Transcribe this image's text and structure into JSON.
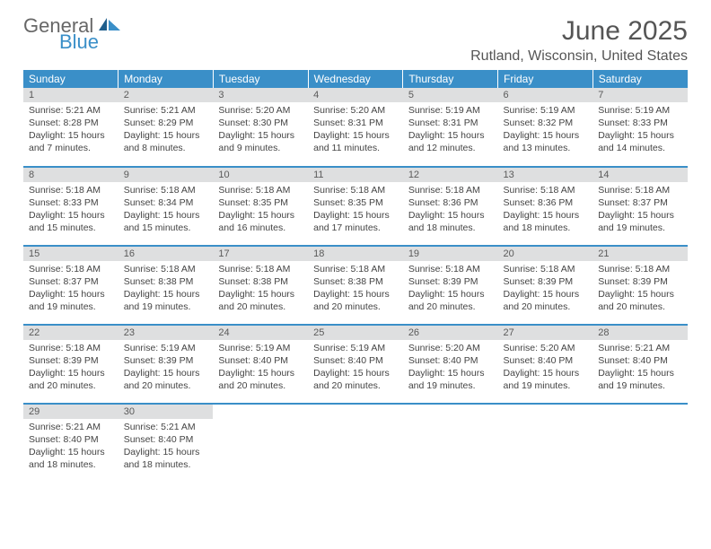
{
  "logo": {
    "word1": "General",
    "word2": "Blue"
  },
  "header": {
    "title": "June 2025",
    "location": "Rutland, Wisconsin, United States"
  },
  "colors": {
    "accent": "#3a8fc8",
    "day_header_bg": "#dedfe0",
    "text": "#444444",
    "title": "#555555"
  },
  "calendar": {
    "day_names": [
      "Sunday",
      "Monday",
      "Tuesday",
      "Wednesday",
      "Thursday",
      "Friday",
      "Saturday"
    ],
    "weeks": [
      [
        {
          "n": "1",
          "sunrise": "5:21 AM",
          "sunset": "8:28 PM",
          "day_h": "15",
          "day_m": "7"
        },
        {
          "n": "2",
          "sunrise": "5:21 AM",
          "sunset": "8:29 PM",
          "day_h": "15",
          "day_m": "8"
        },
        {
          "n": "3",
          "sunrise": "5:20 AM",
          "sunset": "8:30 PM",
          "day_h": "15",
          "day_m": "9"
        },
        {
          "n": "4",
          "sunrise": "5:20 AM",
          "sunset": "8:31 PM",
          "day_h": "15",
          "day_m": "11"
        },
        {
          "n": "5",
          "sunrise": "5:19 AM",
          "sunset": "8:31 PM",
          "day_h": "15",
          "day_m": "12"
        },
        {
          "n": "6",
          "sunrise": "5:19 AM",
          "sunset": "8:32 PM",
          "day_h": "15",
          "day_m": "13"
        },
        {
          "n": "7",
          "sunrise": "5:19 AM",
          "sunset": "8:33 PM",
          "day_h": "15",
          "day_m": "14"
        }
      ],
      [
        {
          "n": "8",
          "sunrise": "5:18 AM",
          "sunset": "8:33 PM",
          "day_h": "15",
          "day_m": "15"
        },
        {
          "n": "9",
          "sunrise": "5:18 AM",
          "sunset": "8:34 PM",
          "day_h": "15",
          "day_m": "15"
        },
        {
          "n": "10",
          "sunrise": "5:18 AM",
          "sunset": "8:35 PM",
          "day_h": "15",
          "day_m": "16"
        },
        {
          "n": "11",
          "sunrise": "5:18 AM",
          "sunset": "8:35 PM",
          "day_h": "15",
          "day_m": "17"
        },
        {
          "n": "12",
          "sunrise": "5:18 AM",
          "sunset": "8:36 PM",
          "day_h": "15",
          "day_m": "18"
        },
        {
          "n": "13",
          "sunrise": "5:18 AM",
          "sunset": "8:36 PM",
          "day_h": "15",
          "day_m": "18"
        },
        {
          "n": "14",
          "sunrise": "5:18 AM",
          "sunset": "8:37 PM",
          "day_h": "15",
          "day_m": "19"
        }
      ],
      [
        {
          "n": "15",
          "sunrise": "5:18 AM",
          "sunset": "8:37 PM",
          "day_h": "15",
          "day_m": "19"
        },
        {
          "n": "16",
          "sunrise": "5:18 AM",
          "sunset": "8:38 PM",
          "day_h": "15",
          "day_m": "19"
        },
        {
          "n": "17",
          "sunrise": "5:18 AM",
          "sunset": "8:38 PM",
          "day_h": "15",
          "day_m": "20"
        },
        {
          "n": "18",
          "sunrise": "5:18 AM",
          "sunset": "8:38 PM",
          "day_h": "15",
          "day_m": "20"
        },
        {
          "n": "19",
          "sunrise": "5:18 AM",
          "sunset": "8:39 PM",
          "day_h": "15",
          "day_m": "20"
        },
        {
          "n": "20",
          "sunrise": "5:18 AM",
          "sunset": "8:39 PM",
          "day_h": "15",
          "day_m": "20"
        },
        {
          "n": "21",
          "sunrise": "5:18 AM",
          "sunset": "8:39 PM",
          "day_h": "15",
          "day_m": "20"
        }
      ],
      [
        {
          "n": "22",
          "sunrise": "5:18 AM",
          "sunset": "8:39 PM",
          "day_h": "15",
          "day_m": "20"
        },
        {
          "n": "23",
          "sunrise": "5:19 AM",
          "sunset": "8:39 PM",
          "day_h": "15",
          "day_m": "20"
        },
        {
          "n": "24",
          "sunrise": "5:19 AM",
          "sunset": "8:40 PM",
          "day_h": "15",
          "day_m": "20"
        },
        {
          "n": "25",
          "sunrise": "5:19 AM",
          "sunset": "8:40 PM",
          "day_h": "15",
          "day_m": "20"
        },
        {
          "n": "26",
          "sunrise": "5:20 AM",
          "sunset": "8:40 PM",
          "day_h": "15",
          "day_m": "19"
        },
        {
          "n": "27",
          "sunrise": "5:20 AM",
          "sunset": "8:40 PM",
          "day_h": "15",
          "day_m": "19"
        },
        {
          "n": "28",
          "sunrise": "5:21 AM",
          "sunset": "8:40 PM",
          "day_h": "15",
          "day_m": "19"
        }
      ],
      [
        {
          "n": "29",
          "sunrise": "5:21 AM",
          "sunset": "8:40 PM",
          "day_h": "15",
          "day_m": "18"
        },
        {
          "n": "30",
          "sunrise": "5:21 AM",
          "sunset": "8:40 PM",
          "day_h": "15",
          "day_m": "18"
        },
        null,
        null,
        null,
        null,
        null
      ]
    ]
  },
  "labels": {
    "sunrise_prefix": "Sunrise: ",
    "sunset_prefix": "Sunset: ",
    "daylight_prefix": "Daylight: ",
    "hours_word": " hours",
    "and_word": "and ",
    "minutes_word": " minutes."
  }
}
